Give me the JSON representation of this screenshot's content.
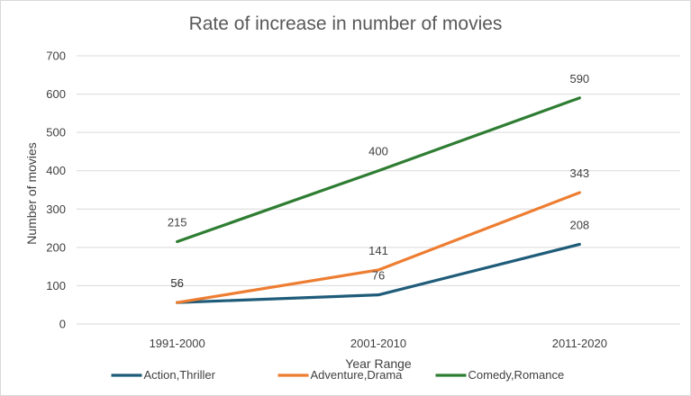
{
  "chart_data": {
    "type": "line",
    "title": "Rate of increase in number of movies",
    "xlabel": "Year Range",
    "ylabel": "Number of movies",
    "categories": [
      "1991-2000",
      "2001-2010",
      "2011-2020"
    ],
    "ylim": [
      0,
      700
    ],
    "yticks": [
      0,
      100,
      200,
      300,
      400,
      500,
      600,
      700
    ],
    "grid": true,
    "legend_position": "bottom",
    "series": [
      {
        "name": "Action,Thriller",
        "values": [
          56,
          76,
          208
        ],
        "color": "#1f5c7a"
      },
      {
        "name": "Adventure,Drama",
        "values": [
          56,
          141,
          343
        ],
        "color": "#ed7d31"
      },
      {
        "name": "Comedy,Romance",
        "values": [
          215,
          400,
          590
        ],
        "color": "#2e7d32"
      }
    ]
  }
}
